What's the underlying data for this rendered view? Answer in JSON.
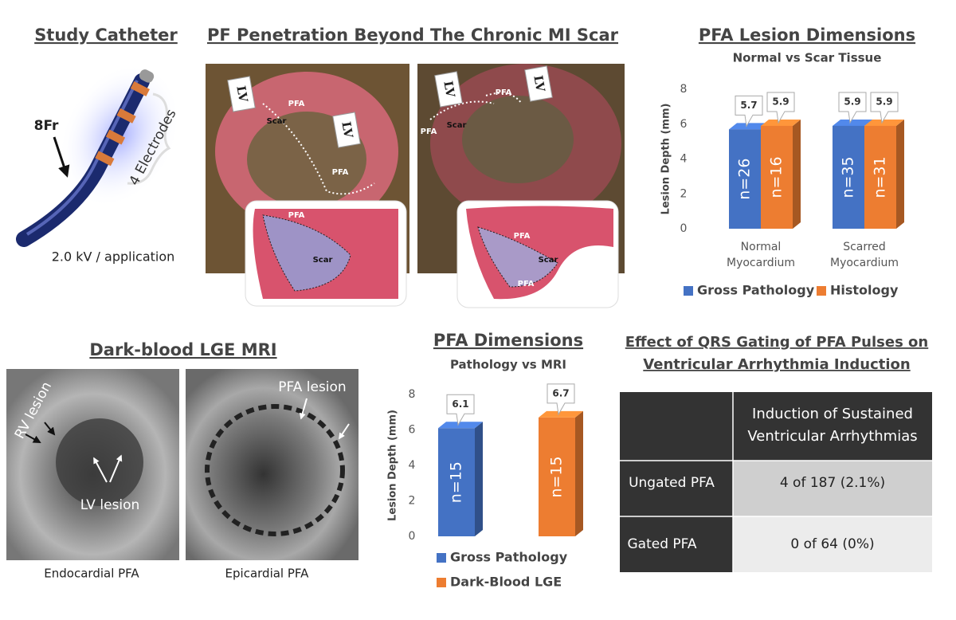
{
  "catheter": {
    "title": "Study Catheter",
    "size_label": "8Fr",
    "electrodes_label": "4 Electrodes",
    "energy_label": "2.0 kV / application"
  },
  "penetration": {
    "title": "PF Penetration Beyond The Chronic MI Scar",
    "panels": [
      {
        "labels": [
          "LV",
          "PFA",
          "Scar",
          "LV",
          "PFA",
          "PFA",
          "Scar"
        ]
      },
      {
        "labels": [
          "LV",
          "PFA",
          "LV",
          "PFA",
          "Scar",
          "PFA",
          "Scar",
          "PFA"
        ]
      }
    ]
  },
  "chart_data": [
    {
      "type": "bar",
      "title": "PFA Lesion Dimensions",
      "subtitle": "Normal vs Scar Tissue",
      "y_label": "Lesion Depth (mm)",
      "categories": [
        "Normal Myocardium",
        "Scarred Myocardium"
      ],
      "series": [
        {
          "name": "Gross Pathology",
          "color": "#4472c4",
          "values": [
            5.7,
            5.9
          ],
          "annotations": [
            "n=26",
            "n=35"
          ]
        },
        {
          "name": "Histology",
          "color": "#ed7d31",
          "values": [
            5.9,
            5.9
          ],
          "annotations": [
            "n=16",
            "n=31"
          ]
        }
      ],
      "ylim": [
        0,
        8
      ],
      "yticks": [
        0,
        2,
        4,
        6,
        8
      ],
      "legend": "bottom"
    },
    {
      "type": "bar",
      "title": "PFA Dimensions",
      "subtitle": "Pathology vs MRI",
      "y_label": "Lesion Depth (mm)",
      "series": [
        {
          "name": "Gross Pathology",
          "color": "#4472c4",
          "values": [
            6.1
          ],
          "annotations": [
            "n=15"
          ]
        },
        {
          "name": "Dark-Blood LGE",
          "color": "#ed7d31",
          "values": [
            6.7
          ],
          "annotations": [
            "n=15"
          ]
        }
      ],
      "ylim": [
        0,
        8
      ],
      "yticks": [
        0,
        2,
        4,
        6,
        8
      ],
      "legend": "bottom"
    }
  ],
  "mri": {
    "title": "Dark-blood LGE MRI",
    "panels": [
      {
        "caption": "Endocardial PFA",
        "labels": [
          "RV lesion",
          "LV lesion"
        ]
      },
      {
        "caption": "Epicardial PFA",
        "labels": [
          "PFA lesion"
        ]
      }
    ]
  },
  "table": {
    "title": "Effect of QRS Gating of PFA Pulses on Ventricular Arrhythmia Induction",
    "header": "Induction of Sustained Ventricular Arrhythmias",
    "rows": [
      [
        "Ungated PFA",
        "4 of 187 (2.1%)"
      ],
      [
        "Gated PFA",
        "0 of 64 (0%)"
      ]
    ]
  }
}
